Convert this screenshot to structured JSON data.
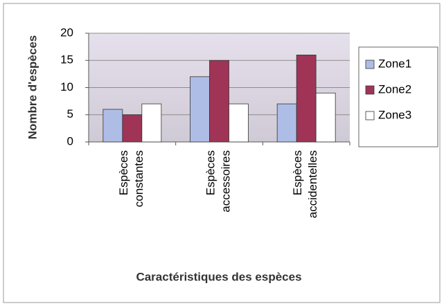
{
  "chart_data": {
    "type": "bar",
    "categories": [
      "Espèces constantes",
      "Espèces accessoires",
      "Espèces accidentelles"
    ],
    "series": [
      {
        "name": "Zone1",
        "color": "#aebde6",
        "values": [
          6,
          12,
          7
        ]
      },
      {
        "name": "Zone2",
        "color": "#a03456",
        "values": [
          5,
          15,
          16
        ]
      },
      {
        "name": "Zone3",
        "color": "#ffffff",
        "values": [
          7,
          7,
          9
        ]
      }
    ],
    "ylim": [
      0,
      20
    ],
    "yticks": [
      0,
      5,
      10,
      15,
      20
    ],
    "grid": true,
    "legend": "right",
    "y_label": "Nombre d'espèces",
    "x_label": "Caractéristiques des espèces"
  }
}
